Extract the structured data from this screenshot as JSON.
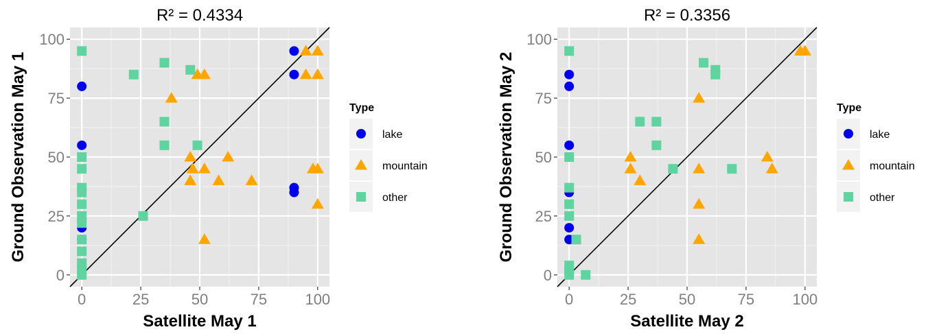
{
  "colors": {
    "panel_bg": "#e5e5e5",
    "grid_major": "#ffffff",
    "grid_minor": "#f2f2f2",
    "lake": "#0000ee",
    "mountain": "#ffa500",
    "other": "#5fd3a0",
    "tick_text": "#7f7f7f",
    "identity_line": "#000000"
  },
  "chart_data": [
    {
      "type": "scatter",
      "title": "R² = 0.4334",
      "xlabel": "Satellite May 1",
      "ylabel": "Ground Observation May 1",
      "xlim": [
        -5,
        105
      ],
      "ylim": [
        -5,
        105
      ],
      "x_ticks": [
        0,
        25,
        50,
        75,
        100
      ],
      "y_ticks": [
        0,
        25,
        50,
        75,
        100
      ],
      "x_tick_labels": [
        "0",
        "25",
        "50",
        "75",
        "100"
      ],
      "y_tick_labels": [
        "0",
        "25",
        "50",
        "75",
        "100"
      ],
      "identity_line": true,
      "grid": true,
      "legend": {
        "title": "Type",
        "placement": "right",
        "items": [
          {
            "label": "lake",
            "shape": "circle",
            "color_key": "lake"
          },
          {
            "label": "mountain",
            "shape": "triangle",
            "color_key": "mountain"
          },
          {
            "label": "other",
            "shape": "square",
            "color_key": "other"
          }
        ]
      },
      "series": [
        {
          "name": "lake",
          "points": [
            [
              0,
              80
            ],
            [
              0,
              55
            ],
            [
              0,
              20
            ],
            [
              0,
              15
            ],
            [
              90,
              95
            ],
            [
              90,
              85
            ],
            [
              90,
              37
            ],
            [
              90,
              35
            ]
          ]
        },
        {
          "name": "mountain",
          "points": [
            [
              38,
              75
            ],
            [
              46,
              50
            ],
            [
              46,
              40
            ],
            [
              47,
              45
            ],
            [
              49,
              85
            ],
            [
              52,
              85
            ],
            [
              52,
              45
            ],
            [
              52,
              15
            ],
            [
              58,
              40
            ],
            [
              62,
              50
            ],
            [
              72,
              40
            ],
            [
              95,
              95
            ],
            [
              95,
              85
            ],
            [
              98,
              45
            ],
            [
              100,
              95
            ],
            [
              100,
              85
            ],
            [
              100,
              45
            ],
            [
              100,
              30
            ]
          ]
        },
        {
          "name": "other",
          "points": [
            [
              0,
              95
            ],
            [
              0,
              50
            ],
            [
              0,
              45
            ],
            [
              0,
              37
            ],
            [
              0,
              35
            ],
            [
              0,
              30
            ],
            [
              0,
              25
            ],
            [
              0,
              22
            ],
            [
              0,
              15
            ],
            [
              0,
              10
            ],
            [
              0,
              5
            ],
            [
              0,
              2
            ],
            [
              0,
              0
            ],
            [
              22,
              85
            ],
            [
              26,
              25
            ],
            [
              35,
              90
            ],
            [
              35,
              65
            ],
            [
              35,
              55
            ],
            [
              46,
              87
            ],
            [
              49,
              55
            ]
          ]
        }
      ]
    },
    {
      "type": "scatter",
      "title": "R² = 0.3356",
      "xlabel": "Satellite May 2",
      "ylabel": "Ground Observation May 2",
      "xlim": [
        -5,
        105
      ],
      "ylim": [
        -5,
        105
      ],
      "x_ticks": [
        0,
        25,
        50,
        75,
        100
      ],
      "y_ticks": [
        0,
        25,
        50,
        75,
        100
      ],
      "x_tick_labels": [
        "0",
        "25",
        "50",
        "75",
        "100"
      ],
      "y_tick_labels": [
        "0",
        "25",
        "50",
        "75",
        "100"
      ],
      "identity_line": true,
      "grid": true,
      "legend": {
        "title": "Type",
        "placement": "right",
        "items": [
          {
            "label": "lake",
            "shape": "circle",
            "color_key": "lake"
          },
          {
            "label": "mountain",
            "shape": "triangle",
            "color_key": "mountain"
          },
          {
            "label": "other",
            "shape": "square",
            "color_key": "other"
          }
        ]
      },
      "series": [
        {
          "name": "lake",
          "points": [
            [
              0,
              85
            ],
            [
              0,
              80
            ],
            [
              0,
              55
            ],
            [
              0,
              35
            ],
            [
              0,
              20
            ],
            [
              0,
              15
            ]
          ]
        },
        {
          "name": "mountain",
          "points": [
            [
              26,
              50
            ],
            [
              26,
              45
            ],
            [
              30,
              40
            ],
            [
              55,
              75
            ],
            [
              55,
              45
            ],
            [
              55,
              30
            ],
            [
              55,
              15
            ],
            [
              84,
              50
            ],
            [
              86,
              45
            ],
            [
              98,
              95
            ],
            [
              100,
              95
            ]
          ]
        },
        {
          "name": "other",
          "points": [
            [
              0,
              95
            ],
            [
              0,
              50
            ],
            [
              0,
              37
            ],
            [
              0,
              30
            ],
            [
              0,
              25
            ],
            [
              0,
              4
            ],
            [
              0,
              2
            ],
            [
              0,
              0
            ],
            [
              3,
              15
            ],
            [
              7,
              0
            ],
            [
              30,
              65
            ],
            [
              37,
              65
            ],
            [
              37,
              55
            ],
            [
              44,
              45
            ],
            [
              57,
              90
            ],
            [
              62,
              87
            ],
            [
              62,
              85
            ],
            [
              69,
              45
            ]
          ]
        }
      ]
    }
  ]
}
